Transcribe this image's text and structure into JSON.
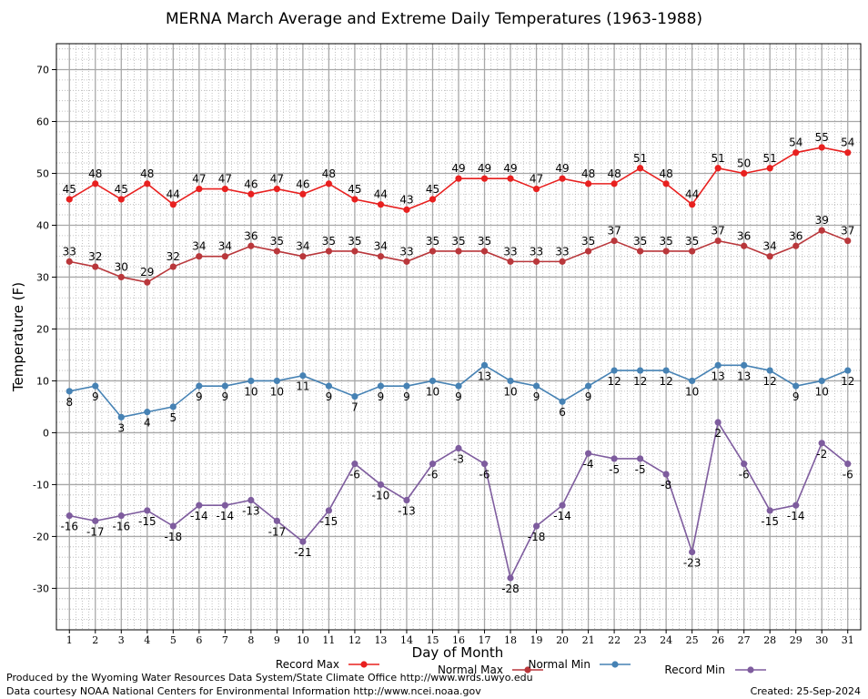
{
  "chart_data": {
    "type": "line",
    "title": "MERNA March Average and Extreme Daily Temperatures (1963-1988)",
    "xlabel": "Day of Month",
    "ylabel": "Temperature (F)",
    "x": [
      1,
      2,
      3,
      4,
      5,
      6,
      7,
      8,
      9,
      10,
      11,
      12,
      13,
      14,
      15,
      16,
      17,
      18,
      19,
      20,
      21,
      22,
      23,
      24,
      25,
      26,
      27,
      28,
      29,
      30,
      31
    ],
    "xlim": [
      0.5,
      31.5
    ],
    "ylim": [
      -38,
      75
    ],
    "yticks": [
      -30,
      -20,
      -10,
      0,
      10,
      20,
      30,
      40,
      50,
      60,
      70
    ],
    "grid": true,
    "legend_position": "bottom",
    "series": [
      {
        "name": "Record Max",
        "color": "#e8201f",
        "label_position": "above",
        "values": [
          45,
          48,
          45,
          48,
          44,
          47,
          47,
          46,
          47,
          46,
          48,
          45,
          44,
          43,
          45,
          49,
          49,
          49,
          47,
          49,
          48,
          48,
          51,
          48,
          44,
          51,
          50,
          51,
          54,
          55,
          54
        ]
      },
      {
        "name": "Normal Max",
        "color": "#b9373b",
        "label_position": "above",
        "values": [
          33,
          32,
          30,
          29,
          32,
          34,
          34,
          36,
          35,
          34,
          35,
          35,
          34,
          33,
          35,
          35,
          35,
          33,
          33,
          33,
          35,
          37,
          35,
          35,
          35,
          37,
          36,
          34,
          36,
          39,
          37
        ]
      },
      {
        "name": "Normal Min",
        "color": "#4682b4",
        "label_position": "below",
        "values": [
          8,
          9,
          3,
          4,
          5,
          9,
          9,
          10,
          10,
          11,
          9,
          7,
          9,
          9,
          10,
          9,
          13,
          10,
          9,
          6,
          9,
          12,
          12,
          12,
          10,
          13,
          13,
          12,
          9,
          10,
          12
        ]
      },
      {
        "name": "Record Min",
        "color": "#7e5c9e",
        "label_position": "below",
        "values": [
          -16,
          -17,
          -16,
          -15,
          -18,
          -14,
          -14,
          -13,
          -17,
          -21,
          -15,
          -6,
          -10,
          -13,
          -6,
          -3,
          -6,
          -28,
          -18,
          -14,
          -4,
          -5,
          -5,
          -8,
          -23,
          2,
          -6,
          -15,
          -14,
          -2,
          -6
        ]
      }
    ]
  },
  "footer": {
    "produced_by": "Produced by the Wyoming Water Resources Data System/State Climate Office http://www.wrds.uwyo.edu",
    "data_courtesy": "Data courtesy NOAA National Centers for Environmental Information http://www.ncei.noaa.gov",
    "created": "Created:  25-Sep-2024"
  }
}
